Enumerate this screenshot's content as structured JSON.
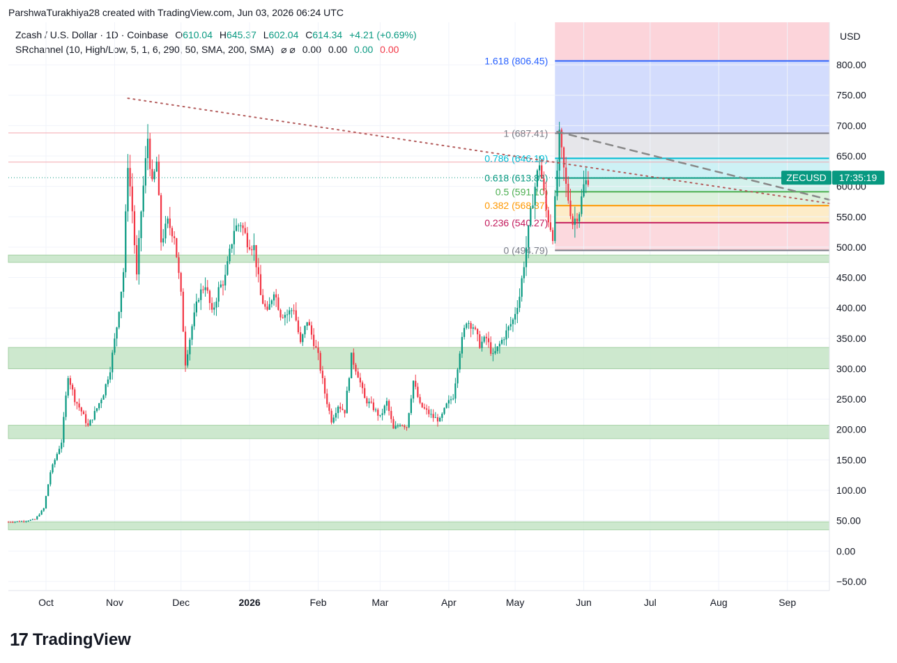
{
  "header": {
    "credit": "ParshwaTurakhiya28 created with TradingView.com, Jun 03, 2026 06:24 UTC",
    "symbol_title": "Zcash / U.S. Dollar · 1D · Coinbase",
    "ohlc": {
      "o_label": "O",
      "o_value": "610.04",
      "h_label": "H",
      "h_value": "645.37",
      "l_label": "L",
      "l_value": "602.04",
      "c_label": "C",
      "c_value": "614.34",
      "change": "+4.21 (+0.69%)"
    },
    "indicator": {
      "name": "SRchannel (10, High/Low, 5, 1, 6, 290, 50, SMA, 200, SMA)",
      "icons": "⌀ ⌀",
      "v1": "0.00",
      "v2": "0.00",
      "v3": "0.00",
      "v4": "0.00"
    }
  },
  "footer": {
    "logo_text": "TradingView",
    "logo_mark": "17"
  },
  "colors": {
    "up": "#089981",
    "down": "#f23645",
    "zone": "#a5d6a7",
    "fib_top_red": "#f8bbd0",
    "fib_blue": "#c5cae9",
    "fib_cyan": "#b2ebf2",
    "fib_pink": "#ffcdd2",
    "fib_orange": "#ffe0b2"
  },
  "chart_data": {
    "type": "candlestick",
    "currency": "USD",
    "y_ticks": [
      "800.00",
      "750.00",
      "700.00",
      "650.00",
      "600.00",
      "550.00",
      "500.00",
      "450.00",
      "400.00",
      "350.00",
      "300.00",
      "250.00",
      "200.00",
      "150.00",
      "100.00",
      "50.00",
      "0.00",
      "−50.00"
    ],
    "y_tick_values": [
      800,
      750,
      700,
      650,
      600,
      550,
      500,
      450,
      400,
      350,
      300,
      250,
      200,
      150,
      100,
      50,
      0,
      -50
    ],
    "ylim": [
      -65,
      870
    ],
    "x_ticks": [
      {
        "label": "Oct",
        "date": "2025-10-01",
        "bold": false
      },
      {
        "label": "Nov",
        "date": "2025-11-01",
        "bold": false
      },
      {
        "label": "Dec",
        "date": "2025-12-01",
        "bold": false
      },
      {
        "label": "2026",
        "date": "2026-01-01",
        "bold": true
      },
      {
        "label": "Feb",
        "date": "2026-02-01",
        "bold": false
      },
      {
        "label": "Mar",
        "date": "2026-03-01",
        "bold": false
      },
      {
        "label": "Apr",
        "date": "2026-04-01",
        "bold": false
      },
      {
        "label": "May",
        "date": "2026-05-01",
        "bold": false
      },
      {
        "label": "Jun",
        "date": "2026-06-01",
        "bold": false
      },
      {
        "label": "Jul",
        "date": "2026-07-01",
        "bold": false
      },
      {
        "label": "Aug",
        "date": "2026-08-01",
        "bold": false
      },
      {
        "label": "Sep",
        "date": "2026-09-01",
        "bold": false
      }
    ],
    "xlim": [
      "2025-09-14",
      "2026-09-20"
    ],
    "price_label": {
      "symbol": "ZECUSD",
      "countdown": "17:35:19",
      "value": 614.34
    },
    "current_price": 614.34,
    "sr_zones": [
      {
        "low": 475,
        "high": 487
      },
      {
        "low": 300,
        "high": 335
      },
      {
        "low": 185,
        "high": 207
      },
      {
        "low": 35,
        "high": 48
      }
    ],
    "horizontal_lines": [
      688,
      640
    ],
    "fib": {
      "start_date": "2026-05-19",
      "end_date": "2026-09-20",
      "levels": [
        {
          "ratio": "1.618",
          "value": 806.45,
          "label": "1.618 (806.45)",
          "color": "#2962ff"
        },
        {
          "ratio": "1",
          "value": 687.41,
          "label": "1 (687.41)",
          "color": "#787b86"
        },
        {
          "ratio": "0.786",
          "value": 646.19,
          "label": "0.786 (646.19)",
          "color": "#00bcd4"
        },
        {
          "ratio": "0.618",
          "value": 613.83,
          "label": "0.618 (613.83)",
          "color": "#089981"
        },
        {
          "ratio": "0.5",
          "value": 591.1,
          "label": "0.5 (591.10)",
          "color": "#4caf50"
        },
        {
          "ratio": "0.382",
          "value": 568.37,
          "label": "0.382 (568.37)",
          "color": "#ff9800"
        },
        {
          "ratio": "0.236",
          "value": 540.27,
          "label": "0.236 (540.27)",
          "color": "#c2185b"
        },
        {
          "ratio": "0",
          "value": 494.79,
          "label": "0 (494.79)",
          "color": "#787b86"
        }
      ]
    },
    "trendlines": [
      {
        "style": "dotted",
        "from": {
          "date": "2025-11-07",
          "value": 745
        },
        "to": {
          "date": "2026-09-20",
          "value": 572
        }
      },
      {
        "style": "dashed",
        "from": {
          "date": "2026-05-20",
          "value": 690
        },
        "to": {
          "date": "2026-09-20",
          "value": 578
        }
      }
    ],
    "price_path": [
      [
        "2025-09-14",
        48
      ],
      [
        "2025-09-20",
        49
      ],
      [
        "2025-09-26",
        52
      ],
      [
        "2025-09-30",
        70
      ],
      [
        "2025-10-03",
        130
      ],
      [
        "2025-10-05",
        150
      ],
      [
        "2025-10-08",
        180
      ],
      [
        "2025-10-11",
        290
      ],
      [
        "2025-10-14",
        250
      ],
      [
        "2025-10-17",
        230
      ],
      [
        "2025-10-20",
        205
      ],
      [
        "2025-10-24",
        235
      ],
      [
        "2025-10-27",
        260
      ],
      [
        "2025-10-30",
        300
      ],
      [
        "2025-11-02",
        370
      ],
      [
        "2025-11-05",
        460
      ],
      [
        "2025-11-07",
        640
      ],
      [
        "2025-11-09",
        560
      ],
      [
        "2025-11-11",
        450
      ],
      [
        "2025-11-13",
        560
      ],
      [
        "2025-11-16",
        680
      ],
      [
        "2025-11-18",
        600
      ],
      [
        "2025-11-20",
        640
      ],
      [
        "2025-11-22",
        510
      ],
      [
        "2025-11-25",
        540
      ],
      [
        "2025-11-28",
        520
      ],
      [
        "2025-12-01",
        420
      ],
      [
        "2025-12-03",
        310
      ],
      [
        "2025-12-06",
        370
      ],
      [
        "2025-12-09",
        420
      ],
      [
        "2025-12-12",
        440
      ],
      [
        "2025-12-15",
        390
      ],
      [
        "2025-12-18",
        430
      ],
      [
        "2025-12-21",
        450
      ],
      [
        "2025-12-25",
        530
      ],
      [
        "2025-12-28",
        540
      ],
      [
        "2025-12-31",
        510
      ],
      [
        "2026-01-03",
        500
      ],
      [
        "2026-01-06",
        420
      ],
      [
        "2026-01-09",
        390
      ],
      [
        "2026-01-12",
        430
      ],
      [
        "2026-01-15",
        390
      ],
      [
        "2026-01-18",
        390
      ],
      [
        "2026-01-21",
        400
      ],
      [
        "2026-01-24",
        340
      ],
      [
        "2026-01-27",
        380
      ],
      [
        "2026-02-01",
        320
      ],
      [
        "2026-02-04",
        260
      ],
      [
        "2026-02-07",
        215
      ],
      [
        "2026-02-10",
        240
      ],
      [
        "2026-02-13",
        230
      ],
      [
        "2026-02-16",
        320
      ],
      [
        "2026-02-19",
        290
      ],
      [
        "2026-02-22",
        250
      ],
      [
        "2026-02-25",
        240
      ],
      [
        "2026-03-01",
        220
      ],
      [
        "2026-03-04",
        245
      ],
      [
        "2026-03-07",
        200
      ],
      [
        "2026-03-10",
        210
      ],
      [
        "2026-03-13",
        205
      ],
      [
        "2026-03-16",
        280
      ],
      [
        "2026-03-19",
        240
      ],
      [
        "2026-03-22",
        230
      ],
      [
        "2026-03-25",
        220
      ],
      [
        "2026-03-28",
        215
      ],
      [
        "2026-03-31",
        240
      ],
      [
        "2026-04-03",
        255
      ],
      [
        "2026-04-06",
        330
      ],
      [
        "2026-04-09",
        380
      ],
      [
        "2026-04-12",
        370
      ],
      [
        "2026-04-15",
        340
      ],
      [
        "2026-04-18",
        350
      ],
      [
        "2026-04-21",
        320
      ],
      [
        "2026-04-24",
        340
      ],
      [
        "2026-04-27",
        360
      ],
      [
        "2026-04-30",
        380
      ],
      [
        "2026-05-03",
        420
      ],
      [
        "2026-05-06",
        500
      ],
      [
        "2026-05-09",
        580
      ],
      [
        "2026-05-12",
        640
      ],
      [
        "2026-05-15",
        560
      ],
      [
        "2026-05-18",
        520
      ],
      [
        "2026-05-21",
        680
      ],
      [
        "2026-05-24",
        600
      ],
      [
        "2026-05-27",
        540
      ],
      [
        "2026-05-30",
        560
      ],
      [
        "2026-06-01",
        600
      ],
      [
        "2026-06-03",
        614
      ]
    ]
  }
}
